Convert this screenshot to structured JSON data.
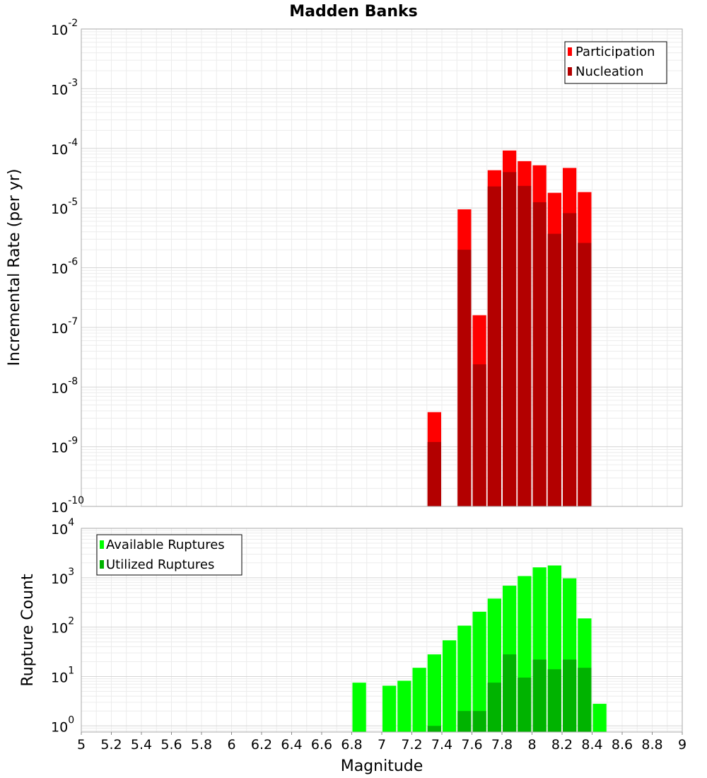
{
  "chart_data": [
    {
      "type": "bar",
      "title": "Madden Banks",
      "xlabel": "",
      "ylabel": "Incremental Rate (per yr)",
      "yscale": "log",
      "ylim": [
        1e-10,
        0.01
      ],
      "xlim": [
        5,
        9
      ],
      "grid": true,
      "legend_position": "top-right",
      "x": [
        7.35,
        7.55,
        7.65,
        7.75,
        7.85,
        7.95,
        8.05,
        8.15,
        8.25,
        8.35
      ],
      "series": [
        {
          "name": "Participation",
          "color": "#ff0000",
          "values": [
            3.8e-09,
            9.5e-06,
            1.6e-07,
            4.3e-05,
            9.2e-05,
            6.1e-05,
            5.2e-05,
            1.8e-05,
            4.7e-05,
            1.85e-05
          ]
        },
        {
          "name": "Nucleation",
          "color": "#b30000",
          "values": [
            1.2e-09,
            2e-06,
            2.4e-08,
            2.3e-05,
            4e-05,
            2.35e-05,
            1.25e-05,
            3.7e-06,
            8.2e-06,
            2.6e-06
          ]
        }
      ]
    },
    {
      "type": "bar",
      "title": "",
      "xlabel": "Magnitude",
      "ylabel": "Rupture Count",
      "yscale": "log",
      "ylim": [
        0.75,
        10000
      ],
      "xlim": [
        5,
        9
      ],
      "grid": true,
      "legend_position": "top-left",
      "x": [
        6.85,
        7.05,
        7.15,
        7.25,
        7.35,
        7.45,
        7.55,
        7.65,
        7.75,
        7.85,
        7.95,
        8.05,
        8.15,
        8.25,
        8.35,
        8.45
      ],
      "series": [
        {
          "name": "Available Ruptures",
          "color": "#00ff00",
          "values": [
            7.5,
            6.5,
            8.2,
            15,
            28,
            54,
            107,
            205,
            378,
            690,
            1080,
            1620,
            1770,
            970,
            150,
            2.8
          ]
        },
        {
          "name": "Utilized Ruptures",
          "color": "#00b300",
          "values": [
            0,
            0,
            0,
            0,
            1,
            0,
            2,
            2,
            7.5,
            28,
            9.5,
            22,
            14,
            22,
            15,
            0
          ]
        }
      ]
    }
  ],
  "x_ticks": [
    "5",
    "5.2",
    "5.4",
    "5.6",
    "5.8",
    "6",
    "6.2",
    "6.4",
    "6.6",
    "6.8",
    "7",
    "7.2",
    "7.4",
    "7.6",
    "7.8",
    "8",
    "8.2",
    "8.4",
    "8.6",
    "8.8",
    "9"
  ],
  "top_y_ticks": [
    {
      "base": "10",
      "exp": "-10"
    },
    {
      "base": "10",
      "exp": "-9"
    },
    {
      "base": "10",
      "exp": "-8"
    },
    {
      "base": "10",
      "exp": "-7"
    },
    {
      "base": "10",
      "exp": "-6"
    },
    {
      "base": "10",
      "exp": "-5"
    },
    {
      "base": "10",
      "exp": "-4"
    },
    {
      "base": "10",
      "exp": "-3"
    },
    {
      "base": "10",
      "exp": "-2"
    }
  ],
  "bottom_y_ticks": [
    {
      "base": "10",
      "exp": "0"
    },
    {
      "base": "10",
      "exp": "1"
    },
    {
      "base": "10",
      "exp": "2"
    },
    {
      "base": "10",
      "exp": "3"
    },
    {
      "base": "10",
      "exp": "4"
    }
  ]
}
